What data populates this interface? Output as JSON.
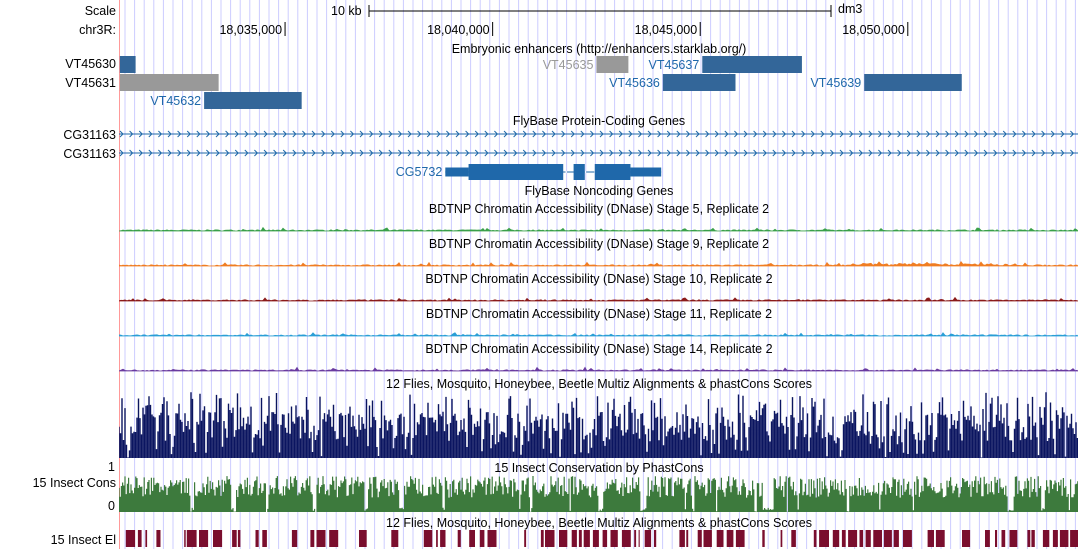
{
  "colors": {
    "gene_blue": "#1f68aa",
    "enhancer_blue": "#336699",
    "enhancer_gray": "#999999",
    "guide_line": "#ccccff",
    "pink_line": "#ff9999",
    "green": "#3aa04a",
    "orange": "#f07d23",
    "maroon": "#8b1a1a",
    "cyan": "#2a9fd6",
    "purple": "#6a3ba0",
    "navy": "#0b1560",
    "cons_green": "#3d7a3d",
    "el_red": "#7a0e2e"
  },
  "ruler": {
    "scale_label": "Scale",
    "chrom_label": "chr3R:",
    "scale_bar_label": "10 kb",
    "assembly": "dm3",
    "ticks": [
      "18,035,000",
      "18,040,000",
      "18,045,000",
      "18,050,000"
    ],
    "tick_positions_bp": [
      18035000,
      18040000,
      18045000,
      18050000
    ],
    "view_start_bp": 18031000,
    "view_end_bp": 18054100
  },
  "tracks": {
    "enhancers": {
      "title": "Embryonic enhancers (http://enhancers.starklab.org/)",
      "items": [
        {
          "name": "VT45630",
          "start_bp": 18031020,
          "end_bp": 18031400,
          "color": "#336699",
          "row": 0,
          "label_side": "left"
        },
        {
          "name": "VT45631",
          "start_bp": 18031020,
          "end_bp": 18033400,
          "color": "#999999",
          "row": 1,
          "label_side": "left"
        },
        {
          "name": "VT45632",
          "start_bp": 18033050,
          "end_bp": 18035400,
          "color": "#336699",
          "row": 2,
          "label_side": "inline"
        },
        {
          "name": "VT45635",
          "start_bp": 18042500,
          "end_bp": 18043270,
          "color": "#999999",
          "row": 0,
          "label_side": "inline"
        },
        {
          "name": "VT45636",
          "start_bp": 18044100,
          "end_bp": 18045850,
          "color": "#336699",
          "row": 1,
          "label_side": "inline"
        },
        {
          "name": "VT45637",
          "start_bp": 18045050,
          "end_bp": 18047450,
          "color": "#336699",
          "row": 0,
          "label_side": "inline"
        },
        {
          "name": "VT45639",
          "start_bp": 18048950,
          "end_bp": 18051300,
          "color": "#336699",
          "row": 1,
          "label_side": "inline"
        }
      ]
    },
    "protein_genes": {
      "title": "FlyBase Protein-Coding Genes",
      "rows": [
        "CG31163",
        "CG31163"
      ],
      "cg5732": {
        "name": "CG5732",
        "start_bp": 18038860,
        "end_bp": 18044060,
        "exons": [
          {
            "start_bp": 18038860,
            "end_bp": 18039420,
            "thick": false
          },
          {
            "start_bp": 18039420,
            "end_bp": 18041700,
            "thick": true
          },
          {
            "start_bp": 18041950,
            "end_bp": 18042220,
            "thick": true
          },
          {
            "start_bp": 18042460,
            "end_bp": 18043320,
            "thick": true
          },
          {
            "start_bp": 18043320,
            "end_bp": 18044060,
            "thick": false
          }
        ]
      }
    },
    "noncoding_genes": {
      "title": "FlyBase Noncoding Genes"
    },
    "dnase": [
      {
        "title": "BDTNP Chromatin Accessibility (DNase) Stage 5, Replicate 2",
        "color": "#3aa04a"
      },
      {
        "title": "BDTNP Chromatin Accessibility (DNase) Stage 9, Replicate 2",
        "color": "#f07d23"
      },
      {
        "title": "BDTNP Chromatin Accessibility (DNase) Stage 10, Replicate 2",
        "color": "#8b1a1a"
      },
      {
        "title": "BDTNP Chromatin Accessibility (DNase) Stage 11, Replicate 2",
        "color": "#2a9fd6"
      },
      {
        "title": "BDTNP Chromatin Accessibility (DNase) Stage 14, Replicate 2",
        "color": "#6a3ba0"
      }
    ],
    "multiz": {
      "title": "12 Flies, Mosquito, Honeybee, Beetle Multiz Alignments & phastCons Scores"
    },
    "phastcons": {
      "title": "15 Insect Conservation by PhastCons",
      "label": "15 Insect Cons",
      "y_max": "1",
      "y_min": "0"
    },
    "elements": {
      "title": "12 Flies, Mosquito, Honeybee, Beetle Multiz Alignments & phastCons Scores",
      "label": "15 Insect El"
    }
  }
}
